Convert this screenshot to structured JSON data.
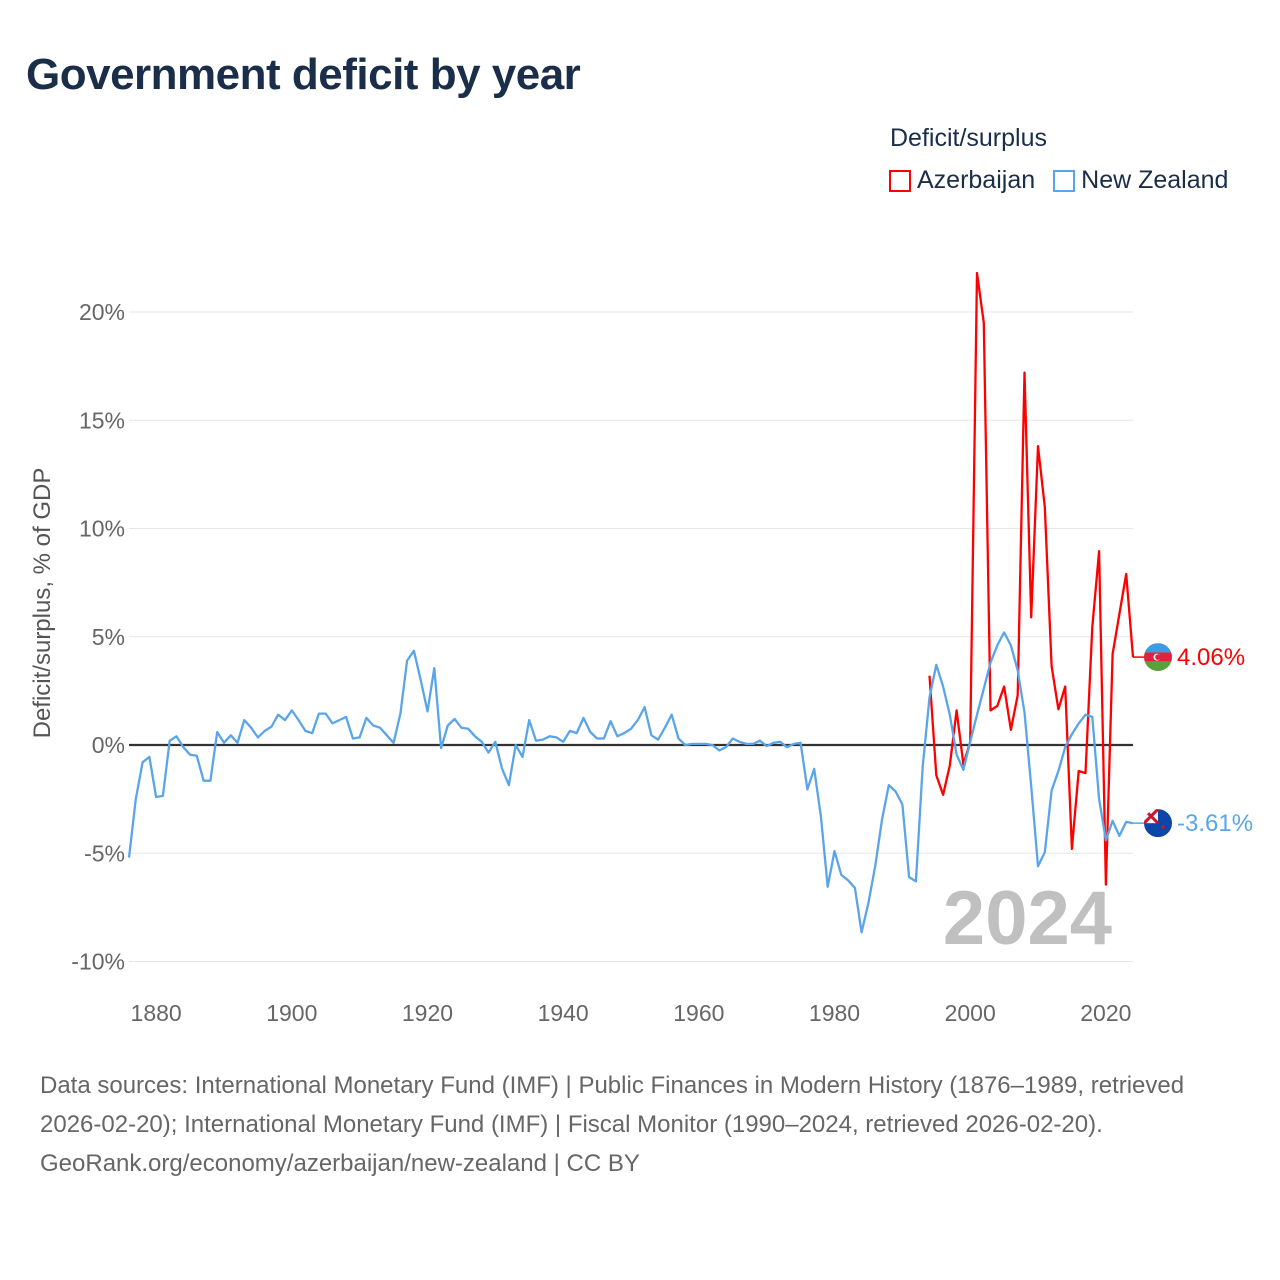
{
  "title": "Government deficit by year",
  "legend": {
    "title": "Deficit/surplus",
    "items": [
      {
        "name": "Azerbaijan",
        "color": "#ff0000"
      },
      {
        "name": "New Zealand",
        "color": "#5aa5ea"
      }
    ]
  },
  "footer": {
    "sources": "Data sources: International Monetary Fund (IMF) | Public Finances in Modern History (1876–1989, retrieved 2026-02-20); International Monetary Fund (IMF) | Fiscal Monitor (1990–2024, retrieved 2026-02-20).",
    "credit": "GeoRank.org/economy/azerbaijan/new-zealand | CC BY"
  },
  "chart_data": {
    "type": "line",
    "title": "Government deficit by year",
    "ylabel": "Deficit/surplus, % of GDP",
    "xlabel": "",
    "xlim": [
      1876,
      2024
    ],
    "ylim": [
      -10,
      22
    ],
    "yticks": [
      -10,
      -5,
      0,
      5,
      10,
      15,
      20
    ],
    "ytick_labels": [
      "-10%",
      "-5%",
      "0%",
      "5%",
      "10%",
      "15%",
      "20%"
    ],
    "xticks": [
      1880,
      1900,
      1920,
      1940,
      1960,
      1980,
      2000,
      2020
    ],
    "xtick_labels": [
      "1880",
      "1900",
      "1920",
      "1940",
      "1960",
      "1980",
      "2000",
      "2020"
    ],
    "grid": true,
    "current_year_label": "2024",
    "series": [
      {
        "name": "Azerbaijan",
        "color": "#ff0000",
        "end_label": "4.06%",
        "flag": "azerbaijan-flag",
        "x_start": 1994,
        "values": [
          3.2,
          -1.4,
          -2.3,
          -0.95,
          1.6,
          -0.9,
          0.15,
          21.8,
          19.5,
          1.6,
          1.8,
          2.7,
          0.7,
          2.3,
          17.2,
          5.9,
          13.8,
          11.0,
          3.65,
          1.65,
          2.7,
          -4.8,
          -1.2,
          -1.3,
          5.45,
          8.95,
          -6.45,
          4.2,
          6.05,
          7.9,
          4.06
        ]
      },
      {
        "name": "New Zealand",
        "color": "#5aa5ea",
        "end_label": "-3.61%",
        "flag": "new-zealand-flag",
        "x_start": 1876,
        "values": [
          -5.2,
          -2.5,
          -0.8,
          -0.55,
          -2.4,
          -2.35,
          0.2,
          0.4,
          -0.1,
          -0.45,
          -0.5,
          -1.65,
          -1.65,
          0.6,
          0.1,
          0.45,
          0.1,
          1.15,
          0.8,
          0.35,
          0.65,
          0.85,
          1.4,
          1.15,
          1.6,
          1.15,
          0.65,
          0.55,
          1.45,
          1.45,
          1.0,
          1.15,
          1.3,
          0.3,
          0.35,
          1.25,
          0.9,
          0.8,
          0.45,
          0.1,
          1.45,
          3.9,
          4.35,
          3.0,
          1.55,
          3.55,
          -0.15,
          0.9,
          1.2,
          0.8,
          0.75,
          0.4,
          0.15,
          -0.35,
          0.15,
          -1.1,
          -1.85,
          0,
          -0.55,
          1.15,
          0.2,
          0.25,
          0.4,
          0.35,
          0.15,
          0.65,
          0.55,
          1.25,
          0.6,
          0.3,
          0.3,
          1.1,
          0.4,
          0.55,
          0.75,
          1.15,
          1.75,
          0.45,
          0.25,
          0.8,
          1.4,
          0.3,
          0,
          0.05,
          0.05,
          0.05,
          0,
          -0.25,
          -0.1,
          0.3,
          0.15,
          0.05,
          0.05,
          0.2,
          -0.05,
          0.1,
          0.15,
          -0.1,
          0.05,
          0.1,
          -2.05,
          -1.1,
          -3.3,
          -6.55,
          -4.9,
          -6.0,
          -6.25,
          -6.6,
          -8.65,
          -7.3,
          -5.6,
          -3.45,
          -1.85,
          -2.15,
          -2.75,
          -6.1,
          -6.3,
          -1.0,
          2.2,
          3.7,
          2.7,
          1.4,
          -0.45,
          -1.15,
          0.15,
          1.4,
          2.6,
          3.8,
          4.6,
          5.2,
          4.6,
          3.45,
          1.5,
          -1.9,
          -5.6,
          -4.95,
          -2.1,
          -1.2,
          -0.1,
          0.5,
          1.0,
          1.4,
          1.3,
          -2.5,
          -4.4,
          -3.5,
          -4.2,
          -3.55,
          -3.61
        ]
      }
    ]
  }
}
